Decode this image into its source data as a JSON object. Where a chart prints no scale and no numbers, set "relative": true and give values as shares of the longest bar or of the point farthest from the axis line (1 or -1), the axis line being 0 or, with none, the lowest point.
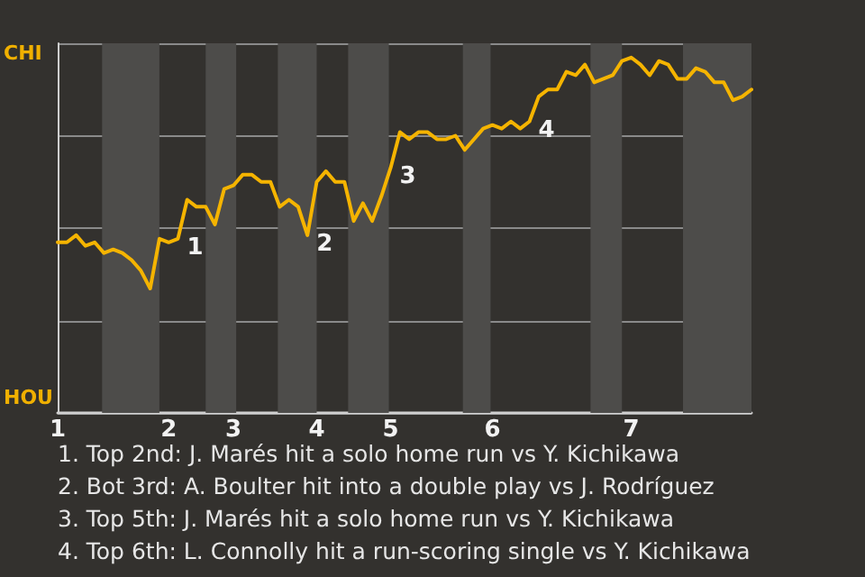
{
  "chart_data": {
    "type": "line",
    "categories": [
      "1",
      null,
      null,
      null,
      null,
      null,
      null,
      null,
      null,
      null,
      null,
      null,
      "2",
      null,
      null,
      null,
      null,
      null,
      null,
      "3",
      null,
      null,
      null,
      null,
      null,
      null,
      null,
      null,
      "4",
      null,
      null,
      null,
      null,
      null,
      null,
      null,
      "5",
      null,
      null,
      null,
      null,
      null,
      null,
      null,
      null,
      null,
      null,
      "6",
      null,
      null,
      null,
      null,
      null,
      null,
      null,
      null,
      null,
      null,
      null,
      null,
      null,
      null,
      "7",
      null,
      null,
      null,
      null,
      null,
      null,
      null,
      null,
      null,
      null,
      null,
      null,
      null
    ],
    "relative": true,
    "series": [
      {
        "color": "#f5b400",
        "values": [
          0.48,
          0.48,
          0.5,
          0.47,
          0.48,
          0.45,
          0.46,
          0.45,
          0.43,
          0.4,
          0.35,
          0.49,
          0.48,
          0.49,
          0.6,
          0.58,
          0.58,
          0.53,
          0.63,
          0.64,
          0.67,
          0.67,
          0.65,
          0.65,
          0.58,
          0.6,
          0.58,
          0.5,
          0.65,
          0.68,
          0.65,
          0.65,
          0.54,
          0.59,
          0.54,
          0.61,
          0.69,
          0.79,
          0.77,
          0.79,
          0.79,
          0.77,
          0.77,
          0.78,
          0.74,
          0.77,
          0.8,
          0.81,
          0.8,
          0.82,
          0.8,
          0.82,
          0.89,
          0.91,
          0.91,
          0.96,
          0.95,
          0.98,
          0.93,
          0.94,
          0.95,
          0.99,
          1,
          0.98,
          0.95,
          0.99,
          0.98,
          0.94,
          0.94,
          0.97,
          0.96,
          0.93,
          0.93,
          0.88,
          0.89,
          0.91
        ]
      }
    ],
    "grid": "y",
    "marker": "none",
    "line_style": "solid",
    "annotations": [
      "CHI",
      "HOU",
      "1",
      "2",
      "3",
      "4",
      "1. Top 2nd: J. Marés hit a solo home run vs Y. Kichikawa",
      "2. Bot 3rd: A. Boulter hit into a double play vs J. Rodríguez",
      "3. Top 5th: J. Marés hit a solo home run vs Y. Kichikawa",
      "4. Top 6th: L. Connolly hit a run-scoring single vs Y. Kichikawa"
    ]
  }
}
